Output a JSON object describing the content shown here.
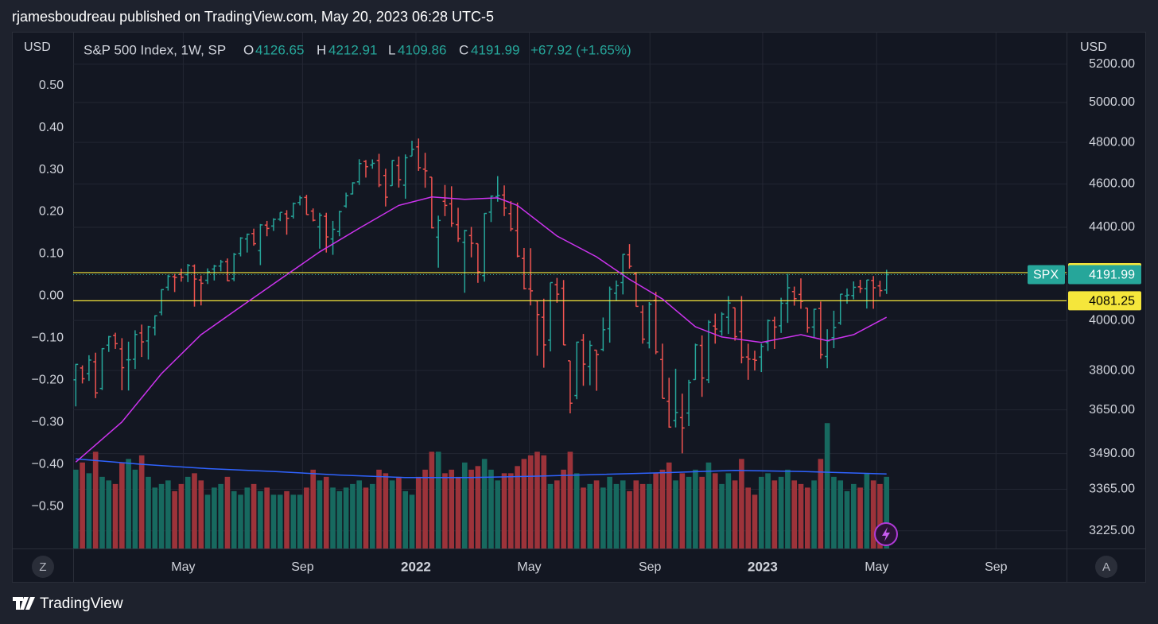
{
  "header": {
    "text": "rjamesboudreau published on TradingView.com, May 20, 2023 06:28 UTC-5"
  },
  "footer": {
    "brand": "TradingView"
  },
  "buttons": [
    "Z",
    "A"
  ],
  "chart_data": {
    "type": "ohlc",
    "title": "S&P 500 Index, 1W, SP",
    "legend": {
      "o_label": "O",
      "h_label": "H",
      "l_label": "L",
      "c_label": "C",
      "change": "+67.92 (+1.65%)"
    },
    "y_unit": "USD",
    "y2_unit": "USD",
    "symbol": "SPX",
    "up_color": "#26a69a",
    "down_color": "#ef5350",
    "volume_up_color": "#17695f",
    "volume_down_color": "#9c333a",
    "ohlc": [
      [
        3764,
        3826,
        3663,
        3824
      ],
      [
        3810,
        3820,
        3750,
        3768
      ],
      [
        3788,
        3860,
        3760,
        3841
      ],
      [
        3834,
        3870,
        3694,
        3714
      ],
      [
        3731,
        3888,
        3725,
        3886
      ],
      [
        3900,
        3937,
        3873,
        3934
      ],
      [
        3939,
        3950,
        3885,
        3906
      ],
      [
        3885,
        3928,
        3724,
        3811
      ],
      [
        3842,
        3914,
        3723,
        3842
      ],
      [
        3844,
        3960,
        3806,
        3943
      ],
      [
        3949,
        3983,
        3853,
        3913
      ],
      [
        3917,
        3978,
        3843,
        3974
      ],
      [
        3970,
        4021,
        3939,
        4019
      ],
      [
        4034,
        4130,
        4021,
        4128
      ],
      [
        4138,
        4191,
        4124,
        4185
      ],
      [
        4183,
        4195,
        4118,
        4180
      ],
      [
        4193,
        4218,
        4162,
        4181
      ],
      [
        4192,
        4238,
        4160,
        4232
      ],
      [
        4229,
        4236,
        4057,
        4173
      ],
      [
        4169,
        4188,
        4062,
        4155
      ],
      [
        4168,
        4219,
        4152,
        4204
      ],
      [
        4216,
        4234,
        4167,
        4229
      ],
      [
        4229,
        4256,
        4206,
        4247
      ],
      [
        4248,
        4262,
        4164,
        4166
      ],
      [
        4174,
        4286,
        4164,
        4280
      ],
      [
        4284,
        4356,
        4271,
        4352
      ],
      [
        4348,
        4372,
        4288,
        4369
      ],
      [
        4372,
        4394,
        4318,
        4327
      ],
      [
        4296,
        4415,
        4233,
        4411
      ],
      [
        4410,
        4429,
        4360,
        4395
      ],
      [
        4406,
        4441,
        4384,
        4436
      ],
      [
        4437,
        4468,
        4428,
        4468
      ],
      [
        4461,
        4478,
        4367,
        4441
      ],
      [
        4450,
        4513,
        4440,
        4509
      ],
      [
        4513,
        4545,
        4500,
        4535
      ],
      [
        4537,
        4549,
        4457,
        4458
      ],
      [
        4474,
        4486,
        4427,
        4432
      ],
      [
        4402,
        4466,
        4305,
        4455
      ],
      [
        4450,
        4466,
        4288,
        4357
      ],
      [
        4348,
        4429,
        4278,
        4391
      ],
      [
        4381,
        4475,
        4360,
        4471
      ],
      [
        4497,
        4559,
        4489,
        4545
      ],
      [
        4553,
        4608,
        4551,
        4605
      ],
      [
        4610,
        4718,
        4595,
        4697
      ],
      [
        4707,
        4714,
        4630,
        4682
      ],
      [
        4690,
        4717,
        4672,
        4698
      ],
      [
        4712,
        4744,
        4585,
        4595
      ],
      [
        4640,
        4672,
        4495,
        4538
      ],
      [
        4592,
        4713,
        4591,
        4712
      ],
      [
        4687,
        4731,
        4583,
        4620
      ],
      [
        4594,
        4741,
        4531,
        4725
      ],
      [
        4733,
        4808,
        4733,
        4766
      ],
      [
        4778,
        4819,
        4662,
        4677
      ],
      [
        4670,
        4749,
        4582,
        4662
      ],
      [
        4632,
        4632,
        4395,
        4398
      ],
      [
        4356,
        4453,
        4222,
        4431
      ],
      [
        4519,
        4595,
        4451,
        4500
      ],
      [
        4507,
        4589,
        4402,
        4418
      ],
      [
        4412,
        4489,
        4335,
        4349
      ],
      [
        4333,
        4389,
        4115,
        4385
      ],
      [
        4363,
        4402,
        4267,
        4329
      ],
      [
        4327,
        4327,
        4157,
        4204
      ],
      [
        4188,
        4465,
        4162,
        4463
      ],
      [
        4469,
        4546,
        4424,
        4543
      ],
      [
        4541,
        4637,
        4517,
        4546
      ],
      [
        4548,
        4593,
        4451,
        4488
      ],
      [
        4462,
        4520,
        4382,
        4393
      ],
      [
        4385,
        4513,
        4267,
        4272
      ],
      [
        4262,
        4308,
        4129,
        4132
      ],
      [
        4131,
        4307,
        4062,
        4123
      ],
      [
        4081,
        4081,
        3858,
        4024
      ],
      [
        4013,
        4090,
        3811,
        3901
      ],
      [
        3920,
        4158,
        3875,
        4158
      ],
      [
        4149,
        4178,
        4073,
        4109
      ],
      [
        4134,
        4169,
        3900,
        3901
      ],
      [
        3838,
        3838,
        3637,
        3675
      ],
      [
        3704,
        3914,
        3690,
        3912
      ],
      [
        3920,
        3945,
        3741,
        3825
      ],
      [
        3815,
        3918,
        3743,
        3899
      ],
      [
        3880,
        3880,
        3722,
        3863
      ],
      [
        3883,
        4012,
        3876,
        3962
      ],
      [
        3966,
        4141,
        3910,
        4130
      ],
      [
        4113,
        4167,
        4080,
        4145
      ],
      [
        4158,
        4282,
        4108,
        4280
      ],
      [
        4278,
        4325,
        4218,
        4228
      ],
      [
        4195,
        4203,
        4057,
        4058
      ],
      [
        4034,
        4062,
        3906,
        3924
      ],
      [
        3909,
        4076,
        3887,
        4067
      ],
      [
        4083,
        4119,
        3864,
        3873
      ],
      [
        3843,
        3906,
        3693,
        3693
      ],
      [
        3682,
        3772,
        3584,
        3586
      ],
      [
        3610,
        3807,
        3585,
        3640
      ],
      [
        3621,
        3711,
        3491,
        3583
      ],
      [
        3638,
        3764,
        3590,
        3753
      ],
      [
        3765,
        3906,
        3764,
        3901
      ],
      [
        3899,
        3939,
        3699,
        3771
      ],
      [
        3764,
        4001,
        3751,
        3993
      ],
      [
        3977,
        4028,
        3906,
        3965
      ],
      [
        3956,
        4034,
        3938,
        4026
      ],
      [
        4013,
        4101,
        3945,
        4072
      ],
      [
        4052,
        4052,
        3918,
        3934
      ],
      [
        3954,
        4101,
        3828,
        3852
      ],
      [
        3853,
        3906,
        3764,
        3845
      ],
      [
        3843,
        3878,
        3800,
        3840
      ],
      [
        3853,
        3906,
        3794,
        3895
      ],
      [
        3910,
        4004,
        3877,
        3999
      ],
      [
        3999,
        4015,
        3885,
        3973
      ],
      [
        3978,
        4094,
        3949,
        4071
      ],
      [
        4071,
        4195,
        3990,
        4136
      ],
      [
        4120,
        4141,
        4061,
        4090
      ],
      [
        4108,
        4176,
        4048,
        4079
      ],
      [
        4051,
        4051,
        3950,
        3970
      ],
      [
        3973,
        4048,
        3928,
        4046
      ],
      [
        4049,
        4078,
        3846,
        3862
      ],
      [
        3855,
        3964,
        3809,
        3917
      ],
      [
        3930,
        4040,
        3888,
        3971
      ],
      [
        3990,
        4110,
        3982,
        4109
      ],
      [
        4102,
        4133,
        4069,
        4105
      ],
      [
        4103,
        4163,
        4087,
        4138
      ],
      [
        4140,
        4170,
        4114,
        4133
      ],
      [
        4132,
        4170,
        4049,
        4169
      ],
      [
        4167,
        4186,
        4048,
        4136
      ],
      [
        4144,
        4166,
        4098,
        4124
      ],
      [
        4126.65,
        4212.91,
        4109.86,
        4191.99
      ]
    ],
    "volume": [
      22,
      24,
      21,
      27,
      20,
      19,
      18,
      24,
      25,
      22,
      26,
      20,
      17,
      18,
      19,
      16,
      18,
      20,
      21,
      19,
      15,
      17,
      18,
      20,
      16,
      15,
      17,
      18,
      16,
      17,
      15,
      15,
      16,
      15,
      15,
      17,
      22,
      19,
      20,
      17,
      16,
      17,
      18,
      19,
      17,
      18,
      22,
      21,
      19,
      20,
      16,
      15,
      20,
      22,
      27,
      27,
      21,
      22,
      20,
      24,
      22,
      23,
      25,
      22,
      19,
      21,
      21,
      23,
      25,
      26,
      27,
      26,
      18,
      19,
      22,
      27,
      21,
      17,
      18,
      19,
      17,
      20,
      18,
      19,
      16,
      19,
      18,
      18,
      21,
      22,
      24,
      19,
      21,
      20,
      22,
      20,
      24,
      21,
      18,
      21,
      19,
      25,
      17,
      15,
      20,
      21,
      19,
      20,
      22,
      19,
      18,
      17,
      19,
      25,
      35,
      20,
      19,
      16,
      18,
      17,
      21,
      19,
      18,
      20
    ],
    "volume_lim": [
      0,
      144
    ],
    "ma": {
      "color": "#cc33ee",
      "x": [
        0,
        7,
        13,
        19,
        25,
        31,
        37,
        43,
        49,
        54,
        59,
        64,
        67,
        73,
        79,
        84,
        89,
        94,
        98,
        104,
        110,
        114,
        118,
        123
      ],
      "values": [
        3460,
        3605,
        3788,
        3942,
        4056,
        4172,
        4291,
        4396,
        4500,
        4539,
        4528,
        4535,
        4500,
        4361,
        4269,
        4172,
        4089,
        3974,
        3933,
        3911,
        3942,
        3918,
        3942,
        4013
      ]
    },
    "volume_ma": {
      "color": "#2f63ff",
      "x": [
        0,
        10,
        20,
        30,
        40,
        50,
        60,
        70,
        80,
        90,
        100,
        110,
        123
      ],
      "values": [
        25,
        23.5,
        22.3,
        21.5,
        20.5,
        19.8,
        19.8,
        20.2,
        20.7,
        21.2,
        21.8,
        21.5,
        20.8
      ]
    },
    "levels": [
      {
        "value": 4200.67,
        "color": "#f5e63b"
      },
      {
        "value": 4081.25,
        "color": "#f5e63b"
      }
    ],
    "log": true,
    "grid": true,
    "ylim": [
      3167,
      5371
    ],
    "yticks": [
      {
        "value": 5200,
        "label": "5200.00"
      },
      {
        "value": 5000,
        "label": "5000.00"
      },
      {
        "value": 4800,
        "label": "4800.00"
      },
      {
        "value": 4600,
        "label": "4600.00"
      },
      {
        "value": 4400,
        "label": "4400.00"
      },
      {
        "value": 4000,
        "label": "4000.00"
      },
      {
        "value": 3800,
        "label": "3800.00"
      },
      {
        "value": 3650,
        "label": "3650.00"
      },
      {
        "value": 3490,
        "label": "3490.00"
      },
      {
        "value": 3365,
        "label": "3365.00"
      },
      {
        "value": 3225,
        "label": "3225.00"
      }
    ],
    "y2lim": [
      -0.6,
      0.626
    ],
    "y2ticks": [
      {
        "value": 0.5,
        "label": "0.50"
      },
      {
        "value": 0.4,
        "label": "0.40"
      },
      {
        "value": 0.3,
        "label": "0.30"
      },
      {
        "value": 0.2,
        "label": "0.20"
      },
      {
        "value": 0.1,
        "label": "0.10"
      },
      {
        "value": 0,
        "label": "0.00"
      },
      {
        "value": -0.1,
        "label": "−0.10"
      },
      {
        "value": -0.2,
        "label": "−0.20"
      },
      {
        "value": -0.3,
        "label": "−0.30"
      },
      {
        "value": -0.4,
        "label": "−0.40"
      },
      {
        "value": -0.5,
        "label": "−0.50"
      }
    ],
    "xlim": [
      -0.4,
      150.3
    ],
    "xticks": [
      {
        "value": 16.3,
        "label": "May"
      },
      {
        "value": 34.4,
        "label": "Sep"
      },
      {
        "value": 51.6,
        "label": "2022"
      },
      {
        "value": 68.8,
        "label": "May"
      },
      {
        "value": 87.1,
        "label": "Sep"
      },
      {
        "value": 104.2,
        "label": "2023"
      },
      {
        "value": 121.5,
        "label": "May"
      },
      {
        "value": 139.6,
        "label": "Sep"
      }
    ]
  }
}
